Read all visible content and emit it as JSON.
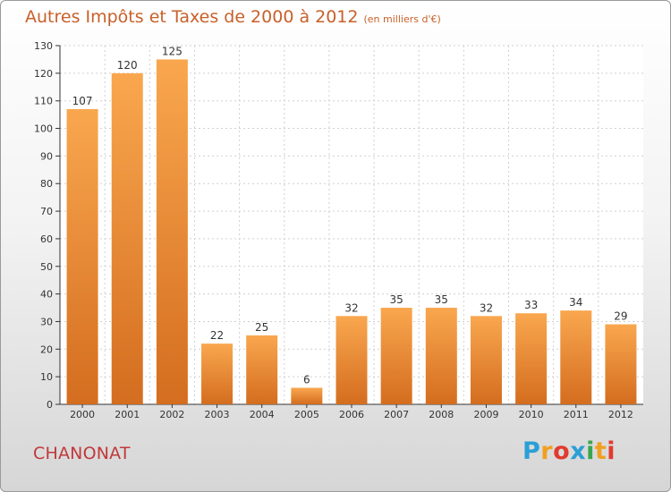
{
  "title": "Autres Impôts et Taxes de 2000 à 2012",
  "title_unit": "(en milliers d'€)",
  "commune": "CHANONAT",
  "logo": {
    "letters": [
      "P",
      "r",
      "o",
      "x",
      "i",
      "t",
      "i"
    ],
    "colors": [
      "#2a9fd6",
      "#f0a020",
      "#e03b2c",
      "#2a9fd6",
      "#3aa64c",
      "#f0a020",
      "#e03b2c"
    ]
  },
  "colors": {
    "bar_light": "#f9a74f",
    "bar_dark": "#d46d1f",
    "title": "#c8602a",
    "commune": "#c0393b"
  },
  "chart_data": {
    "type": "bar",
    "categories": [
      "2000",
      "2001",
      "2002",
      "2003",
      "2004",
      "2005",
      "2006",
      "2007",
      "2008",
      "2009",
      "2010",
      "2011",
      "2012"
    ],
    "values": [
      107,
      120,
      125,
      22,
      25,
      6,
      32,
      35,
      35,
      32,
      33,
      34,
      29
    ],
    "ylim": [
      0,
      130
    ],
    "yticks": [
      0,
      10,
      20,
      30,
      40,
      50,
      60,
      70,
      80,
      90,
      100,
      110,
      120,
      130
    ],
    "grid": true,
    "data_labels": true
  }
}
